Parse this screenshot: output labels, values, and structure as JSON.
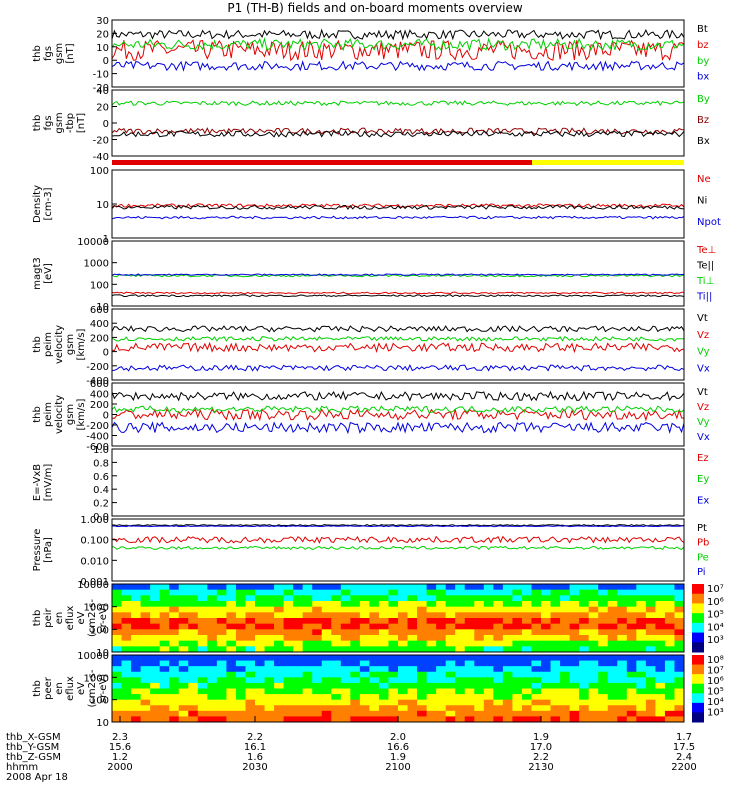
{
  "title": "P1 (TH-B) fields and on-board moments overview",
  "colors": {
    "black": "#000000",
    "red": "#e00000",
    "green": "#00d000",
    "blue": "#0000e0",
    "darkred": "#8b0000",
    "yellow": "#ffff00"
  },
  "chart_data": [
    {
      "type": "line",
      "panel_label": [
        "thb",
        "fgs",
        "gsm",
        "[nT]"
      ],
      "ylim": [
        -30,
        30
      ],
      "yticks": [
        "30",
        "20",
        "10",
        "0",
        "-10",
        "-20"
      ],
      "series": [
        {
          "name": "Bt",
          "color": "black",
          "level": 17,
          "amp": 4
        },
        {
          "name": "bz",
          "color": "red",
          "level": 3,
          "amp": 9
        },
        {
          "name": "by",
          "color": "green",
          "level": 8,
          "amp": 5
        },
        {
          "name": "bx",
          "color": "blue",
          "level": -11,
          "amp": 4
        }
      ]
    },
    {
      "type": "line",
      "panel_label": [
        "thb",
        "fgs",
        "gsm",
        "-tbp",
        "[nT]"
      ],
      "ylim": [
        -50,
        40
      ],
      "yticks": [
        "40",
        "20",
        "0",
        "-20",
        "-40"
      ],
      "series": [
        {
          "name": "By",
          "color": "green",
          "level": 22,
          "amp": 3
        },
        {
          "name": "Bz",
          "color": "darkred",
          "level": -16,
          "amp": 4
        },
        {
          "name": "Bx",
          "color": "black",
          "level": -20,
          "amp": 4
        }
      ]
    },
    {
      "type": "line",
      "panel_label": [
        "Density",
        "[cm-3]"
      ],
      "log": true,
      "ylim": [
        1,
        100
      ],
      "yticks": [
        "100",
        "10",
        "1"
      ],
      "series": [
        {
          "name": "Ne",
          "color": "red",
          "level": 9,
          "amp": 1.5
        },
        {
          "name": "Ni",
          "color": "black",
          "level": 8,
          "amp": 1.5
        },
        {
          "name": "Npot",
          "color": "blue",
          "level": 4,
          "amp": 0.5
        }
      ]
    },
    {
      "type": "line",
      "panel_label": [
        "magt3",
        "[eV]"
      ],
      "log": true,
      "ylim": [
        10,
        10000
      ],
      "yticks": [
        "10000",
        "1000",
        "100",
        "10"
      ],
      "series": [
        {
          "name": "Te⊥",
          "color": "red",
          "level": 40,
          "amp": 5
        },
        {
          "name": "Te||",
          "color": "black",
          "level": 30,
          "amp": 4
        },
        {
          "name": "Ti⊥",
          "color": "green",
          "level": 250,
          "amp": 40
        },
        {
          "name": "Ti||",
          "color": "blue",
          "level": 280,
          "amp": 30
        }
      ]
    },
    {
      "type": "line",
      "panel_label": [
        "thb",
        "peim",
        "velocity",
        "gsm",
        "[km/s]"
      ],
      "ylim": [
        -400,
        600
      ],
      "yticks": [
        "600",
        "400",
        "200",
        "0",
        "-200",
        "-400"
      ],
      "series": [
        {
          "name": "Vt",
          "color": "black",
          "level": 320,
          "amp": 40
        },
        {
          "name": "Vz",
          "color": "red",
          "level": 60,
          "amp": 60
        },
        {
          "name": "Vy",
          "color": "green",
          "level": 180,
          "amp": 30
        },
        {
          "name": "Vx",
          "color": "blue",
          "level": -230,
          "amp": 40
        }
      ]
    },
    {
      "type": "line",
      "panel_label": [
        "thb",
        "peim",
        "velocity",
        "gsm",
        "[km/s]"
      ],
      "ylim": [
        -600,
        600
      ],
      "yticks": [
        "600",
        "400",
        "200",
        "0",
        "-200",
        "-400",
        "-600"
      ],
      "series": [
        {
          "name": "Vt",
          "color": "black",
          "level": 350,
          "amp": 80
        },
        {
          "name": "Vz",
          "color": "red",
          "level": 0,
          "amp": 100
        },
        {
          "name": "Vy",
          "color": "green",
          "level": 100,
          "amp": 60
        },
        {
          "name": "Vx",
          "color": "blue",
          "level": -250,
          "amp": 100
        }
      ]
    },
    {
      "type": "line",
      "panel_label": [
        "E=-VxB",
        "[mV/m]"
      ],
      "ylim": [
        0,
        1
      ],
      "yticks": [
        "1.0",
        "0.8",
        "0.6",
        "0.4",
        "0.2",
        "0.0"
      ],
      "series": [
        {
          "name": "Ez",
          "color": "red"
        },
        {
          "name": "Ey",
          "color": "green"
        },
        {
          "name": "Ex",
          "color": "blue"
        }
      ]
    },
    {
      "type": "line",
      "panel_label": [
        "Pressure",
        "[nPa]"
      ],
      "log": true,
      "ylim": [
        0.001,
        1
      ],
      "yticks": [
        "1.000",
        "0.100",
        "0.010",
        "0.001"
      ],
      "series": [
        {
          "name": "Pt",
          "color": "black",
          "level": 0.5,
          "amp": 0.05
        },
        {
          "name": "Pb",
          "color": "red",
          "level": 0.1,
          "amp": 0.05
        },
        {
          "name": "Pe",
          "color": "green",
          "level": 0.04,
          "amp": 0.01
        },
        {
          "name": "Pi",
          "color": "blue",
          "level": 0.45,
          "amp": 0.03
        }
      ]
    },
    {
      "type": "heatmap",
      "panel_label": [
        "thb",
        "peir",
        "en",
        "eflux",
        "eV",
        "(cm2-s-",
        "sr-eV)"
      ],
      "log": true,
      "ylim": [
        10,
        10000
      ],
      "yticks": [
        "10000",
        "1000",
        "100",
        "10"
      ],
      "colorbar": [
        "10⁷",
        "10⁶",
        "10⁵",
        "10⁴",
        "10³"
      ]
    },
    {
      "type": "heatmap",
      "panel_label": [
        "thb",
        "peer",
        "en",
        "eflux",
        "eV",
        "(cm2-s-",
        "sr-eV)"
      ],
      "log": true,
      "ylim": [
        10,
        10000
      ],
      "yticks": [
        "10000",
        "1000",
        "100",
        "10"
      ],
      "colorbar": [
        "10⁸",
        "10⁷",
        "10⁶",
        "10⁵",
        "10⁴",
        "10³"
      ]
    }
  ],
  "x_axis": {
    "rows": [
      {
        "label": "thb_X-GSM",
        "values": [
          "2.3",
          "2.2",
          "2.0",
          "1.9",
          "1.7"
        ]
      },
      {
        "label": "thb_Y-GSM",
        "values": [
          "15.6",
          "16.1",
          "16.6",
          "17.0",
          "17.5"
        ]
      },
      {
        "label": "thb_Z-GSM",
        "values": [
          "1.2",
          "1.6",
          "1.9",
          "2.2",
          "2.4"
        ]
      },
      {
        "label": "hhmm",
        "values": [
          "2000",
          "2030",
          "2100",
          "2130",
          "2200"
        ]
      }
    ],
    "date": "2008 Apr 18"
  }
}
